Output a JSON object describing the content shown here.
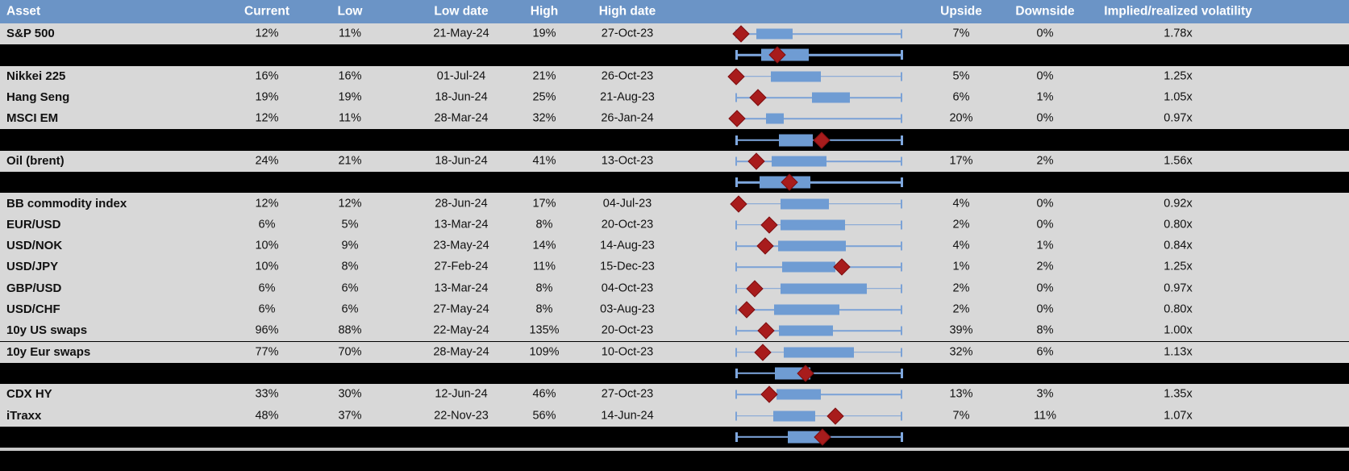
{
  "header": {
    "columns": [
      {
        "key": "asset",
        "label": "Asset"
      },
      {
        "key": "current",
        "label": "Current"
      },
      {
        "key": "low",
        "label": "Low"
      },
      {
        "key": "low_date",
        "label": "Low date"
      },
      {
        "key": "high",
        "label": "High"
      },
      {
        "key": "high_date",
        "label": "High date"
      },
      {
        "key": "upside",
        "label": "Upside"
      },
      {
        "key": "downside",
        "label": "Downside"
      },
      {
        "key": "implied_realized",
        "label": "Implied/realized volatility"
      }
    ]
  },
  "colors": {
    "header_blue": "#6B94C6",
    "row_gray": "#D8D8D8",
    "separator_black": "#000000",
    "box_blue": "#6F9CD3",
    "whisker_blue": "#7BA2D6",
    "whisker_blue_sep": "#7FA8DF",
    "diamond_red": "#A81C1C",
    "diamond_edge": "#7C1113",
    "divider_gray": "#C9C9C9"
  },
  "chart_data": {
    "type": "boxplot",
    "orientation": "horizontal",
    "normalization": "per-row min-max range [0,1]; diamond = current level; box = middle range",
    "rows": [
      {
        "kind": "data",
        "asset": "S&P 500",
        "current": "12%",
        "low": "11%",
        "low_date": "21-May-24",
        "high": "19%",
        "high_date": "27-Oct-23",
        "upside": "7%",
        "downside": "0%",
        "implied_realized": "1.78x",
        "box": {
          "lo": 0.12,
          "hi": 0.34,
          "diamond": 0.03
        }
      },
      {
        "kind": "separator",
        "box": {
          "lo": 0.15,
          "hi": 0.44,
          "diamond": 0.25
        }
      },
      {
        "kind": "data",
        "asset": "Nikkei 225",
        "current": "16%",
        "low": "16%",
        "low_date": "01-Jul-24",
        "high": "21%",
        "high_date": "26-Oct-23",
        "upside": "5%",
        "downside": "0%",
        "implied_realized": "1.25x",
        "box": {
          "lo": 0.21,
          "hi": 0.51,
          "diamond": 0.0
        }
      },
      {
        "kind": "data",
        "asset": "Hang Seng",
        "current": "19%",
        "low": "19%",
        "low_date": "18-Jun-24",
        "high": "25%",
        "high_date": "21-Aug-23",
        "upside": "6%",
        "downside": "1%",
        "implied_realized": "1.05x",
        "box": {
          "lo": 0.46,
          "hi": 0.69,
          "diamond": 0.13
        }
      },
      {
        "kind": "data",
        "asset": "MSCI EM",
        "current": "12%",
        "low": "11%",
        "low_date": "28-Mar-24",
        "high": "32%",
        "high_date": "26-Jan-24",
        "upside": "20%",
        "downside": "0%",
        "implied_realized": "0.97x",
        "box": {
          "lo": 0.18,
          "hi": 0.29,
          "diamond": 0.005
        }
      },
      {
        "kind": "separator",
        "box": {
          "lo": 0.26,
          "hi": 0.465,
          "diamond": 0.515
        }
      },
      {
        "kind": "data",
        "asset": "Oil (brent)",
        "current": "24%",
        "low": "21%",
        "low_date": "18-Jun-24",
        "high": "41%",
        "high_date": "13-Oct-23",
        "upside": "17%",
        "downside": "2%",
        "implied_realized": "1.56x",
        "box": {
          "lo": 0.215,
          "hi": 0.545,
          "diamond": 0.12
        }
      },
      {
        "kind": "separator",
        "box": {
          "lo": 0.14,
          "hi": 0.45,
          "diamond": 0.32
        }
      },
      {
        "kind": "data",
        "asset": "BB commodity index",
        "current": "12%",
        "low": "12%",
        "low_date": "28-Jun-24",
        "high": "17%",
        "high_date": "04-Jul-23",
        "upside": "4%",
        "downside": "0%",
        "implied_realized": "0.92x",
        "box": {
          "lo": 0.27,
          "hi": 0.56,
          "diamond": 0.015
        }
      },
      {
        "kind": "data",
        "asset": "EUR/USD",
        "current": "6%",
        "low": "5%",
        "low_date": "13-Mar-24",
        "high": "8%",
        "high_date": "20-Oct-23",
        "upside": "2%",
        "downside": "0%",
        "implied_realized": "0.80x",
        "box": {
          "lo": 0.27,
          "hi": 0.66,
          "diamond": 0.2
        }
      },
      {
        "kind": "data",
        "asset": "USD/NOK",
        "current": "10%",
        "low": "9%",
        "low_date": "23-May-24",
        "high": "14%",
        "high_date": "14-Aug-23",
        "upside": "4%",
        "downside": "1%",
        "implied_realized": "0.84x",
        "box": {
          "lo": 0.255,
          "hi": 0.665,
          "diamond": 0.175
        }
      },
      {
        "kind": "data",
        "asset": "USD/JPY",
        "current": "10%",
        "low": "8%",
        "low_date": "27-Feb-24",
        "high": "11%",
        "high_date": "15-Dec-23",
        "upside": "1%",
        "downside": "2%",
        "implied_realized": "1.25x",
        "box": {
          "lo": 0.28,
          "hi": 0.6,
          "diamond": 0.64
        }
      },
      {
        "kind": "data",
        "asset": "GBP/USD",
        "current": "6%",
        "low": "6%",
        "low_date": "13-Mar-24",
        "high": "8%",
        "high_date": "04-Oct-23",
        "upside": "2%",
        "downside": "0%",
        "implied_realized": "0.97x",
        "box": {
          "lo": 0.27,
          "hi": 0.79,
          "diamond": 0.11
        }
      },
      {
        "kind": "data",
        "asset": "USD/CHF",
        "current": "6%",
        "low": "6%",
        "low_date": "27-May-24",
        "high": "8%",
        "high_date": "03-Aug-23",
        "upside": "2%",
        "downside": "0%",
        "implied_realized": "0.80x",
        "box": {
          "lo": 0.23,
          "hi": 0.625,
          "diamond": 0.065
        }
      },
      {
        "kind": "data",
        "asset": "10y US swaps",
        "current": "96%",
        "low": "88%",
        "low_date": "22-May-24",
        "high": "135%",
        "high_date": "20-Oct-23",
        "upside": "39%",
        "downside": "8%",
        "implied_realized": "1.00x",
        "box": {
          "lo": 0.26,
          "hi": 0.585,
          "diamond": 0.18
        }
      },
      {
        "kind": "data",
        "asset": "10y Eur swaps",
        "current": "77%",
        "low": "70%",
        "low_date": "28-May-24",
        "high": "109%",
        "high_date": "10-Oct-23",
        "upside": "32%",
        "downside": "6%",
        "implied_realized": "1.13x",
        "box": {
          "lo": 0.29,
          "hi": 0.71,
          "diamond": 0.16
        }
      },
      {
        "kind": "separator",
        "box": {
          "lo": 0.235,
          "hi": 0.45,
          "diamond": 0.42
        }
      },
      {
        "kind": "data",
        "asset": "CDX HY",
        "current": "33%",
        "low": "30%",
        "low_date": "12-Jun-24",
        "high": "46%",
        "high_date": "27-Oct-23",
        "upside": "13%",
        "downside": "3%",
        "implied_realized": "1.35x",
        "box": {
          "lo": 0.245,
          "hi": 0.51,
          "diamond": 0.2
        }
      },
      {
        "kind": "data",
        "asset": "iTraxx",
        "current": "48%",
        "low": "37%",
        "low_date": "22-Nov-23",
        "high": "56%",
        "high_date": "14-Jun-24",
        "upside": "7%",
        "downside": "11%",
        "implied_realized": "1.07x",
        "box": {
          "lo": 0.225,
          "hi": 0.48,
          "diamond": 0.6
        }
      },
      {
        "kind": "separator",
        "box": {
          "lo": 0.31,
          "hi": 0.535,
          "diamond": 0.52
        }
      }
    ]
  }
}
